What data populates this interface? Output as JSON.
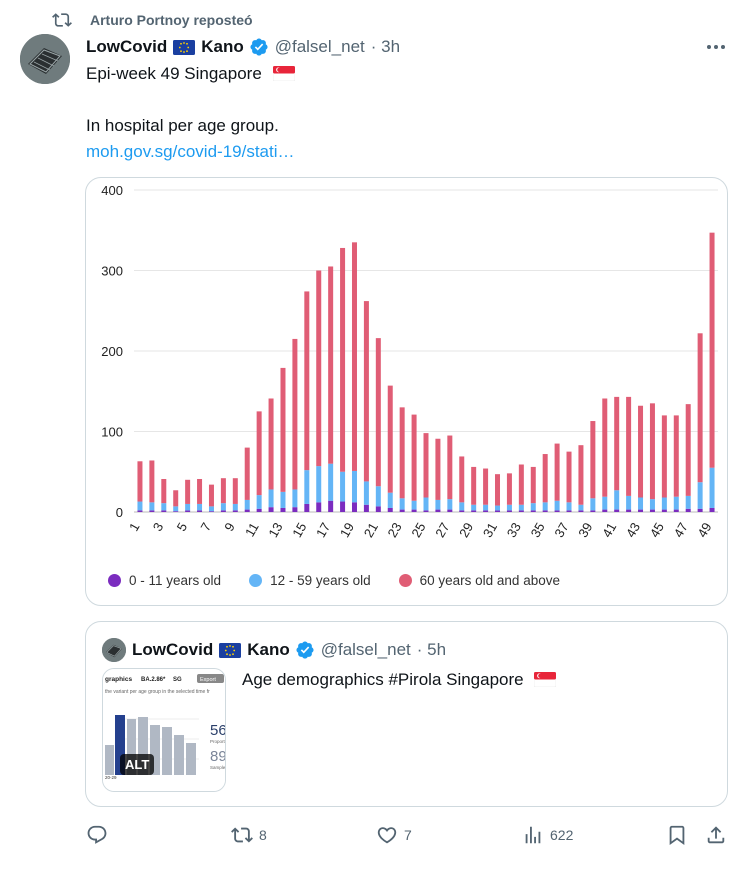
{
  "repost": {
    "text": "Arturo Portnoy reposteó"
  },
  "post": {
    "author_name": "LowCovid",
    "author_name2": "Kano",
    "handle": "@falsel_net",
    "time": "· 3h",
    "line1": "Epi-week 49 Singapore",
    "line2": "In hospital per age group.",
    "link": "moh.gov.sg/covid-19/stati…"
  },
  "chart_data": {
    "type": "bar",
    "stacked": true,
    "categories": [
      "1",
      "2",
      "3",
      "4",
      "5",
      "6",
      "7",
      "8",
      "9",
      "10",
      "11",
      "12",
      "13",
      "14",
      "15",
      "16",
      "17",
      "18",
      "19",
      "20",
      "21",
      "22",
      "23",
      "24",
      "25",
      "26",
      "27",
      "28",
      "29",
      "30",
      "31",
      "32",
      "33",
      "34",
      "35",
      "36",
      "37",
      "38",
      "39",
      "40",
      "41",
      "42",
      "43",
      "44",
      "45",
      "46",
      "47",
      "48",
      "49"
    ],
    "x_tick_labels": [
      "1",
      "3",
      "5",
      "7",
      "9",
      "11",
      "13",
      "15",
      "17",
      "19",
      "21",
      "23",
      "25",
      "27",
      "29",
      "31",
      "33",
      "35",
      "37",
      "39",
      "41",
      "43",
      "45",
      "47",
      "49"
    ],
    "y_ticks": [
      "0",
      "100",
      "200",
      "300",
      "400"
    ],
    "ylim": [
      0,
      400
    ],
    "grid": true,
    "legend_position": "bottom-left",
    "series": [
      {
        "name": "0 - 11 years old",
        "color": "#7b2cbf",
        "values": [
          2,
          2,
          2,
          1,
          2,
          2,
          1,
          2,
          2,
          3,
          4,
          6,
          5,
          6,
          10,
          12,
          14,
          13,
          12,
          9,
          7,
          5,
          3,
          3,
          2,
          3,
          3,
          2,
          2,
          2,
          2,
          2,
          2,
          2,
          2,
          2,
          2,
          2,
          2,
          3,
          3,
          3,
          3,
          3,
          3,
          3,
          4,
          4,
          5
        ]
      },
      {
        "name": "12 - 59 years old",
        "color": "#64b5f6",
        "values": [
          11,
          10,
          9,
          6,
          8,
          8,
          6,
          9,
          8,
          12,
          17,
          22,
          20,
          22,
          42,
          45,
          46,
          37,
          39,
          29,
          25,
          19,
          14,
          11,
          16,
          12,
          13,
          10,
          7,
          7,
          6,
          7,
          7,
          9,
          10,
          12,
          10,
          7,
          15,
          16,
          24,
          17,
          15,
          13,
          15,
          16,
          16,
          33,
          50
        ]
      },
      {
        "name": "60 years old and above",
        "color": "#e05d75",
        "values": [
          50,
          52,
          30,
          20,
          30,
          31,
          27,
          31,
          32,
          65,
          104,
          113,
          154,
          187,
          222,
          243,
          245,
          278,
          284,
          224,
          184,
          133,
          113,
          107,
          80,
          76,
          79,
          57,
          47,
          45,
          39,
          39,
          50,
          45,
          60,
          71,
          63,
          74,
          96,
          122,
          116,
          123,
          114,
          119,
          102,
          101,
          114,
          185,
          292
        ]
      }
    ]
  },
  "quote": {
    "author_name": "LowCovid",
    "author_name2": "Kano",
    "handle": "@falsel_net",
    "time": "· 5h",
    "text": "Age demographics #Pirola Singapore",
    "alt_label": "ALT",
    "thumb": {
      "title": "graphics",
      "variant": "BA.2.86*",
      "region": "SG",
      "export": "Export",
      "subtitle": "the variant per age group in the selected time fr",
      "stat1": "56",
      "stat1_label": "Proport",
      "stat2": "89",
      "stat2_label": "Sample",
      "axis_label": "20-29"
    }
  },
  "actions": {
    "replies": "",
    "reposts": "8",
    "likes": "7",
    "views": "622"
  },
  "colors": {
    "link": "#1d9bf0",
    "muted": "#536471",
    "verified": "#1d9bf0",
    "border": "#cfd9de"
  }
}
